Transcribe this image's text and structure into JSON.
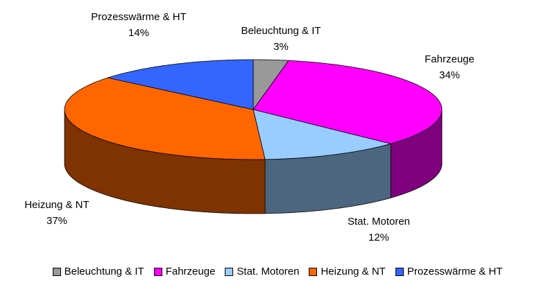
{
  "chart_data": {
    "type": "pie",
    "categories": [
      "Beleuchtung & IT",
      "Fahrzeuge",
      "Stat. Motoren",
      "Heizung & NT",
      "Prozesswärme & HT"
    ],
    "values": [
      3,
      34,
      12,
      37,
      14
    ],
    "value_labels": [
      "3%",
      "34%",
      "12%",
      "37%",
      "14%"
    ],
    "colors": [
      "#999999",
      "#ff00ff",
      "#99ccff",
      "#ff6600",
      "#3366ff"
    ],
    "legend": "bottom"
  }
}
